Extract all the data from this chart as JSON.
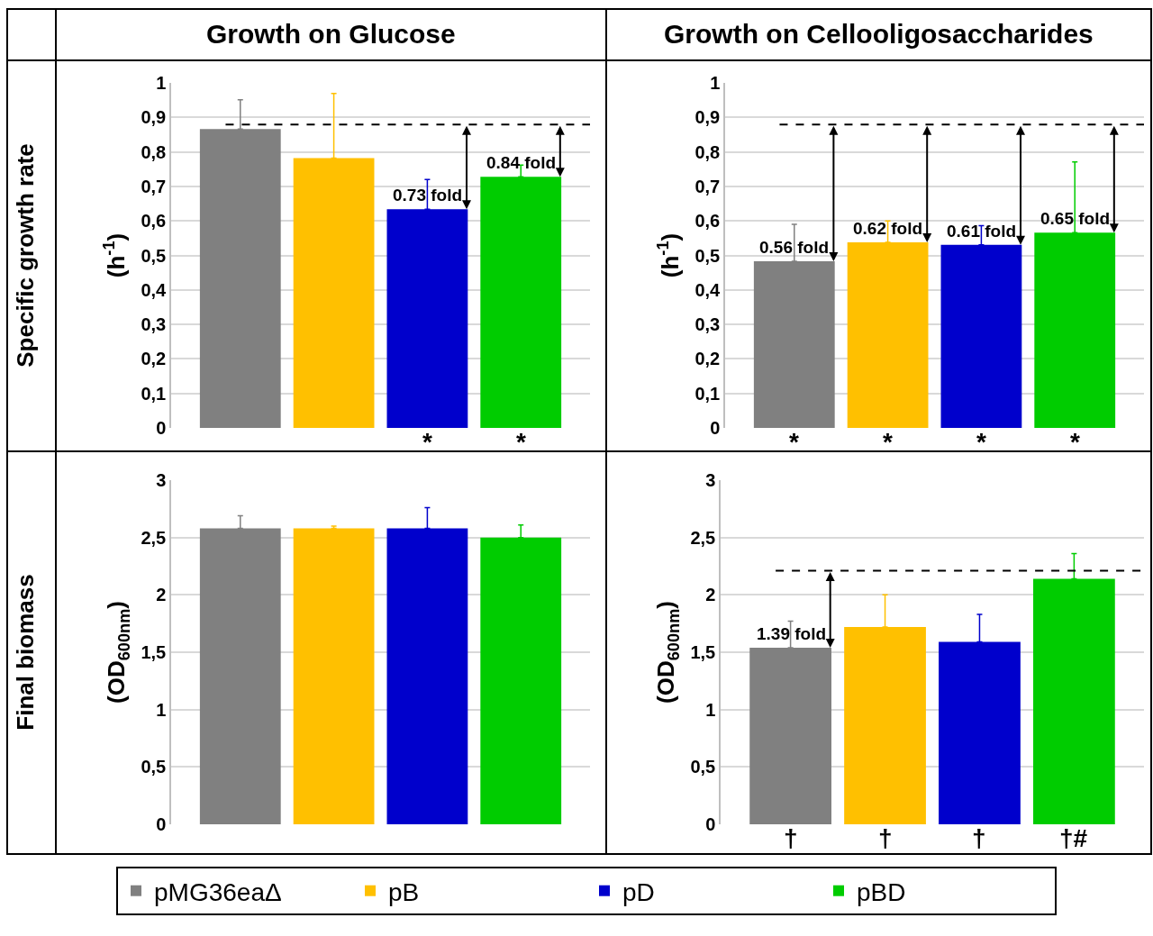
{
  "chart_data": [
    {
      "type": "bar",
      "title": "Growth on Glucose",
      "ylabel": "Specific growth rate\n(h$^{-1}$)",
      "categories": [
        null
      ],
      "ylim": [
        0,
        1
      ],
      "yticks": [
        0,
        {
          "value": 0.1,
          "label": "0,1"
        },
        {
          "value": 0.2,
          "label": "0,2"
        },
        {
          "value": 0.3,
          "label": "0,3"
        },
        {
          "value": 0.4,
          "label": "0,4"
        },
        {
          "value": 0.5,
          "label": "0,5"
        },
        {
          "value": 0.6,
          "label": "0,6"
        },
        {
          "value": 0.7,
          "label": "0,7"
        },
        {
          "value": 0.8,
          "label": "0,8"
        },
        {
          "value": 0.9,
          "label": "0,9"
        },
        1
      ],
      "grid": "y",
      "legend": "bottom",
      "series": [
        {
          "name": "pMG36eaΔ",
          "color": "#808080",
          "values": [
            0.866
          ],
          "errors": [
            [
              0.866,
              0.951
            ]
          ]
        },
        {
          "name": "pB",
          "color": "#ffc000",
          "values": [
            0.782
          ],
          "errors": [
            [
              0.782,
              0.969
            ]
          ]
        },
        {
          "name": "pD",
          "color": "#0000cc",
          "values": [
            0.634
          ],
          "errors": [
            [
              0.634,
              0.72
            ]
          ]
        },
        {
          "name": "pBD",
          "color": "#00cc00",
          "values": [
            0.728
          ],
          "errors": [
            [
              0.728,
              0.762
            ]
          ]
        }
      ],
      "ref_lines": [
        {
          "axis": "y",
          "value": 0.879,
          "color": "#000000",
          "line_style": "dashed"
        }
      ],
      "annotations": [
        {
          "text": "0.73 fold",
          "y": 0.634
        },
        {
          "text": "0.84 fold",
          "y": 0.728
        },
        "*",
        "*"
      ]
    },
    {
      "type": "bar",
      "title": "Growth on Cellooligosaccharides",
      "ylabel": "(h$^{-1}$)",
      "categories": [
        null
      ],
      "ylim": [
        0,
        1
      ],
      "yticks": [
        0,
        {
          "value": 0.1,
          "label": "0,1"
        },
        {
          "value": 0.2,
          "label": "0,2"
        },
        {
          "value": 0.3,
          "label": "0,3"
        },
        {
          "value": 0.4,
          "label": "0,4"
        },
        {
          "value": 0.5,
          "label": "0,5"
        },
        {
          "value": 0.6,
          "label": "0,6"
        },
        {
          "value": 0.7,
          "label": "0,7"
        },
        {
          "value": 0.8,
          "label": "0,8"
        },
        {
          "value": 0.9,
          "label": "0,9"
        },
        1
      ],
      "grid": "y",
      "series": [
        {
          "color": "#808080",
          "values": [
            0.483
          ],
          "errors": [
            [
              0.483,
              0.59
            ]
          ]
        },
        {
          "color": "#ffc000",
          "values": [
            0.538
          ],
          "errors": [
            [
              0.538,
              0.6
            ]
          ]
        },
        {
          "color": "#0000cc",
          "values": [
            0.531
          ],
          "errors": [
            [
              0.531,
              0.586
            ]
          ]
        },
        {
          "color": "#00cc00",
          "values": [
            0.566
          ],
          "errors": [
            [
              0.566,
              0.771
            ]
          ]
        }
      ],
      "ref_lines": [
        {
          "axis": "y",
          "value": 0.879,
          "color": "#000000",
          "line_style": "dashed"
        }
      ],
      "annotations": [
        {
          "text": "0.56 fold",
          "y": 0.483
        },
        {
          "text": "0.62 fold",
          "y": 0.538
        },
        {
          "text": "0.61 fold",
          "y": 0.531
        },
        {
          "text": "0.65 fold",
          "y": 0.566
        },
        "*",
        "*",
        "*",
        "*"
      ]
    },
    {
      "type": "bar",
      "ylabel": "Final biomass\n(OD$_{600nm}$)",
      "categories": [
        null
      ],
      "ylim": [
        0,
        3
      ],
      "yticks": [
        0,
        {
          "value": 0.5,
          "label": "0,5"
        },
        1,
        {
          "value": 1.5,
          "label": "1,5"
        },
        2,
        {
          "value": 2.5,
          "label": "2,5"
        },
        3
      ],
      "grid": "y",
      "series": [
        {
          "color": "#808080",
          "values": [
            2.58
          ],
          "errors": [
            [
              2.58,
              2.69
            ]
          ]
        },
        {
          "color": "#ffc000",
          "values": [
            2.58
          ],
          "errors": [
            [
              2.58,
              2.6
            ]
          ]
        },
        {
          "color": "#0000cc",
          "values": [
            2.58
          ],
          "errors": [
            [
              2.58,
              2.76
            ]
          ]
        },
        {
          "color": "#00cc00",
          "values": [
            2.5
          ],
          "errors": [
            [
              2.5,
              2.61
            ]
          ]
        }
      ]
    },
    {
      "type": "bar",
      "ylabel": "(OD$_{600nm}$)",
      "categories": [
        null
      ],
      "ylim": [
        0,
        3
      ],
      "yticks": [
        0,
        {
          "value": 0.5,
          "label": "0,5"
        },
        1,
        {
          "value": 1.5,
          "label": "1,5"
        },
        2,
        {
          "value": 2.5,
          "label": "2,5"
        },
        3
      ],
      "grid": "y",
      "series": [
        {
          "color": "#808080",
          "values": [
            1.54
          ],
          "errors": [
            [
              1.54,
              1.77
            ]
          ]
        },
        {
          "color": "#ffc000",
          "values": [
            1.72
          ],
          "errors": [
            [
              1.72,
              2.0
            ]
          ]
        },
        {
          "color": "#0000cc",
          "values": [
            1.59
          ],
          "errors": [
            [
              1.59,
              1.83
            ]
          ]
        },
        {
          "color": "#00cc00",
          "values": [
            2.14
          ],
          "errors": [
            [
              2.14,
              2.36
            ]
          ]
        }
      ],
      "ref_lines": [
        {
          "axis": "y",
          "value": 2.21,
          "color": "#000000",
          "line_style": "dashed"
        }
      ],
      "annotations": [
        {
          "text": "1.39 fold",
          "y": 1.54
        },
        "†",
        "†",
        "†",
        "†#"
      ]
    }
  ]
}
